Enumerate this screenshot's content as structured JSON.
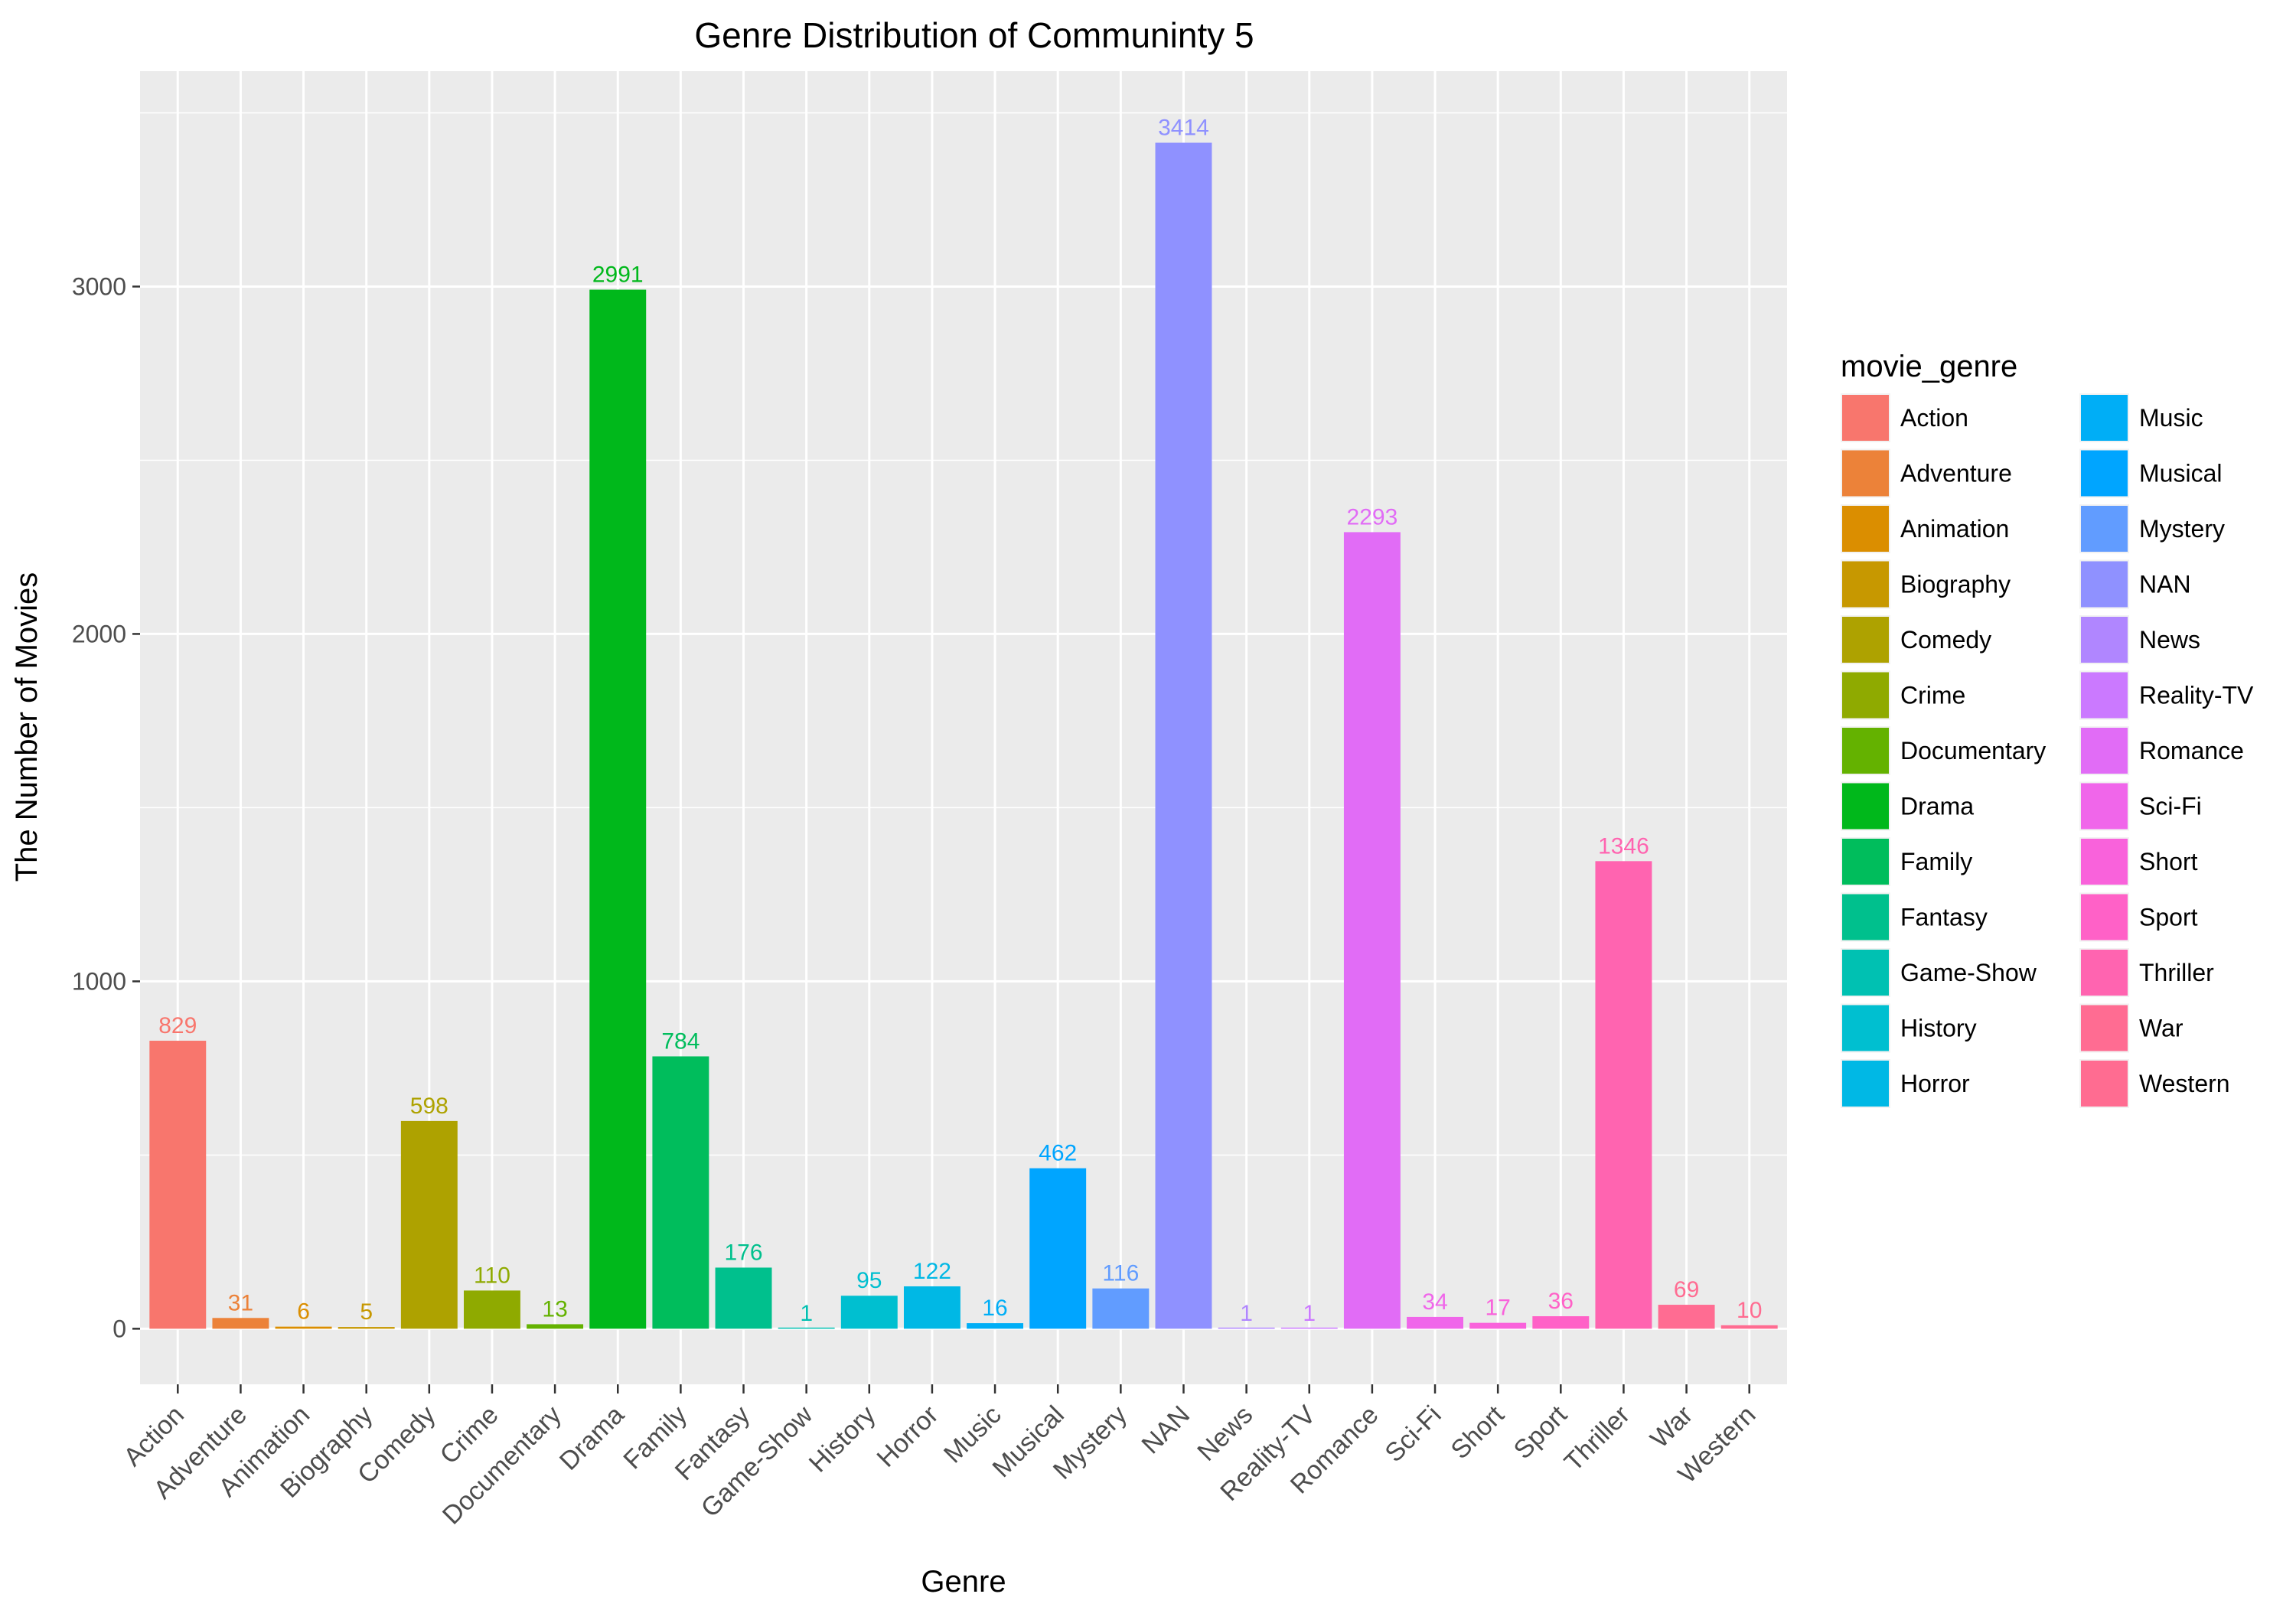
{
  "chart_data": {
    "type": "bar",
    "title": "Genre Distribution of Communinty 5",
    "xlabel": "Genre",
    "ylabel": "The Number of Movies",
    "ylim": [
      -160,
      3620
    ],
    "yticks": [
      0,
      1000,
      2000,
      3000
    ],
    "grid": true,
    "legend_title": "movie_genre",
    "legend_position": "right",
    "categories": [
      "Action",
      "Adventure",
      "Animation",
      "Biography",
      "Comedy",
      "Crime",
      "Documentary",
      "Drama",
      "Family",
      "Fantasy",
      "Game-Show",
      "History",
      "Horror",
      "Music",
      "Musical",
      "Mystery",
      "NAN",
      "News",
      "Reality-TV",
      "Romance",
      "Sci-Fi",
      "Short",
      "Sport",
      "Thriller",
      "War",
      "Western"
    ],
    "values": [
      829,
      31,
      6,
      5,
      598,
      110,
      13,
      2991,
      784,
      176,
      1,
      95,
      122,
      16,
      462,
      116,
      3414,
      1,
      1,
      2293,
      34,
      17,
      36,
      1346,
      69,
      10
    ],
    "colors": [
      "#F8766D",
      "#EC8239",
      "#DB8E00",
      "#C79800",
      "#AEA200",
      "#8FAA00",
      "#64B200",
      "#00B81B",
      "#00BD5C",
      "#00C08D",
      "#00C1B2",
      "#00BFD0",
      "#00B8E5",
      "#00AEF6",
      "#00A5FF",
      "#619CFF",
      "#8F91FF",
      "#B086FF",
      "#CB79FF",
      "#E16CF6",
      "#F066EA",
      "#F962DB",
      "#FF61C7",
      "#FF64B0",
      "#FF6C92",
      "#FF6C91"
    ]
  }
}
